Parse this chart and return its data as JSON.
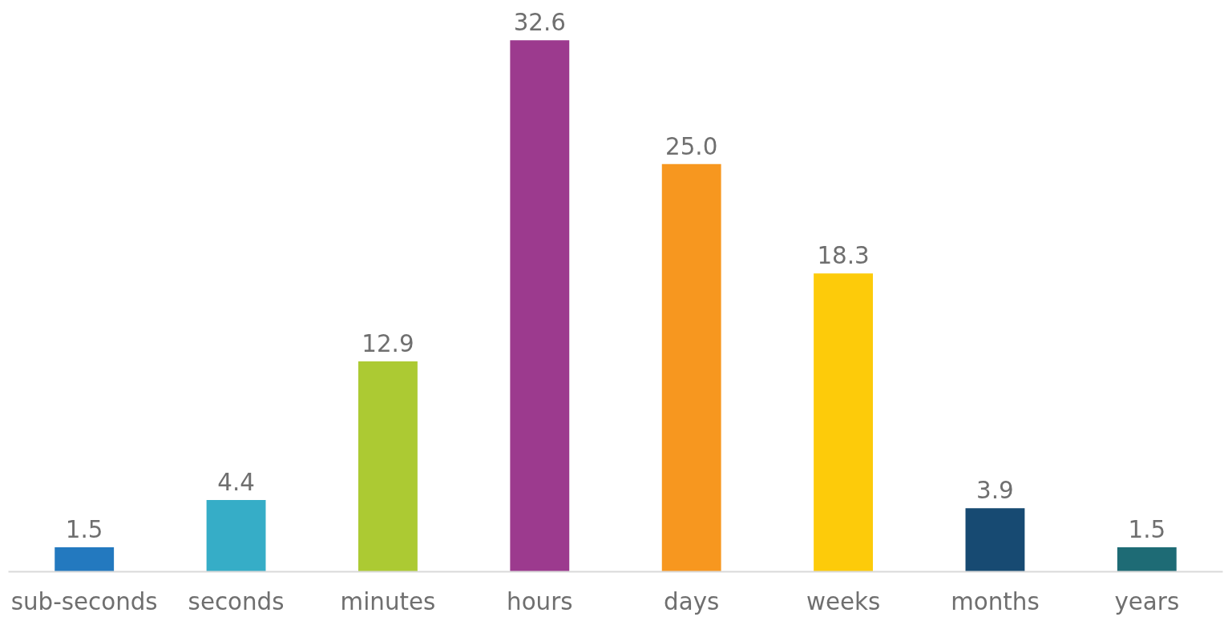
{
  "chart_data": {
    "type": "bar",
    "categories": [
      "sub-seconds",
      "seconds",
      "minutes",
      "hours",
      "days",
      "weeks",
      "months",
      "years"
    ],
    "values": [
      1.5,
      4.4,
      12.9,
      32.6,
      25.0,
      18.3,
      3.9,
      1.5
    ],
    "value_labels": [
      "1.5",
      "4.4",
      "12.9",
      "32.6",
      "25.0",
      "18.3",
      "3.9",
      "1.5"
    ],
    "colors": [
      "#2379bf",
      "#36adc7",
      "#acca33",
      "#9c3a8e",
      "#f7971f",
      "#fdcb0a",
      "#174a72",
      "#1e6b75"
    ],
    "grid": false
  }
}
